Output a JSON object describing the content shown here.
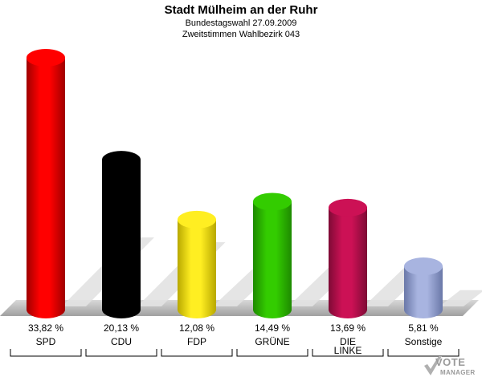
{
  "header": {
    "title": "Stadt Mülheim an der Ruhr",
    "subtitle1": "Bundestagswahl 27.09.2009",
    "subtitle2": "Zweitstimmen Wahlbezirk 043"
  },
  "logo": {
    "line1": "VOTE",
    "line2": "MANAGER"
  },
  "chart_data": {
    "type": "bar",
    "title": "Stadt Mülheim an der Ruhr",
    "subtitle": "Bundestagswahl 27.09.2009 / Zweitstimmen Wahlbezirk 043",
    "categories": [
      "SPD",
      "CDU",
      "FDP",
      "GRÜNE",
      "DIE LINKE",
      "Sonstige"
    ],
    "category_lines": [
      [
        "SPD"
      ],
      [
        "CDU"
      ],
      [
        "FDP"
      ],
      [
        "GRÜNE"
      ],
      [
        "DIE",
        "LINKE"
      ],
      [
        "Sonstige"
      ]
    ],
    "values": [
      33.82,
      20.13,
      12.08,
      14.49,
      13.69,
      5.81
    ],
    "value_labels": [
      "33,82 %",
      "20,13 %",
      "12,08 %",
      "14,49 %",
      "13,69 %",
      "5,81 %"
    ],
    "colors": [
      "#ff0000",
      "#000000",
      "#ffee22",
      "#33cc00",
      "#cc1155",
      "#a8b4e0"
    ],
    "shade_colors": [
      "#a00000",
      "#000000",
      "#b8a800",
      "#1e8a00",
      "#7e0a35",
      "#6a78a8"
    ],
    "ylim": [
      0,
      33.82
    ],
    "grid": false,
    "legend": "none"
  }
}
